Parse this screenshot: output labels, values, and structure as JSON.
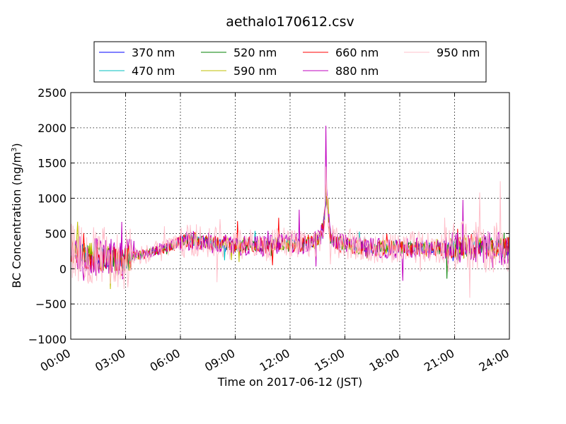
{
  "chart_data": {
    "type": "line",
    "title": "aethalo170612.csv",
    "xlabel": "Time on 2017-06-12 (JST)",
    "ylabel_main": "BC Concentration (ng/m",
    "ylabel_sup": "3",
    "ylabel_close": ")",
    "xlim": [
      0,
      24
    ],
    "ylim": [
      -1000,
      2500
    ],
    "x_unit": "hours",
    "yticks": [
      -1000,
      -500,
      0,
      500,
      1000,
      1500,
      2000,
      2500
    ],
    "ytick_labels": [
      "−1000",
      "−500",
      "0",
      "500",
      "1000",
      "1500",
      "2000",
      "2500"
    ],
    "xticks": [
      0,
      3,
      6,
      9,
      12,
      15,
      18,
      21,
      24
    ],
    "xtick_labels": [
      "00:00",
      "03:00",
      "06:00",
      "09:00",
      "12:00",
      "15:00",
      "18:00",
      "21:00",
      "24:00"
    ],
    "grid": true,
    "legend_position": "top",
    "anchors": {
      "x": [
        0,
        0.5,
        1,
        1.5,
        2,
        2.4,
        2.8,
        3.2,
        3.6,
        4,
        4.5,
        5,
        5.5,
        6,
        6.5,
        7,
        7.5,
        8,
        8.5,
        9,
        9.5,
        10,
        10.5,
        11,
        11.5,
        12,
        12.5,
        13,
        13.2,
        13.6,
        13.8,
        14,
        14.2,
        14.5,
        15,
        15.5,
        16,
        16.5,
        17,
        17.5,
        18,
        18.5,
        19,
        19.5,
        20,
        20.5,
        21,
        21.5,
        22,
        22.5,
        23,
        23.5,
        24
      ],
      "y": [
        280,
        250,
        180,
        150,
        160,
        130,
        120,
        150,
        190,
        210,
        250,
        280,
        320,
        400,
        410,
        400,
        380,
        360,
        350,
        330,
        340,
        330,
        320,
        340,
        350,
        360,
        350,
        370,
        360,
        420,
        560,
        1000,
        420,
        360,
        350,
        320,
        300,
        290,
        300,
        300,
        290,
        300,
        300,
        290,
        280,
        290,
        300,
        310,
        320,
        320,
        300,
        290,
        290
      ]
    },
    "series": [
      {
        "name": "370 nm",
        "color": "#0000ff",
        "noise": 70,
        "peak": 900,
        "seed": 11
      },
      {
        "name": "470 nm",
        "color": "#00bfbf",
        "noise": 80,
        "peak": 1000,
        "seed": 23
      },
      {
        "name": "520 nm",
        "color": "#008000",
        "noise": 90,
        "peak": 1150,
        "seed": 37
      },
      {
        "name": "590 nm",
        "color": "#bfbf00",
        "noise": 105,
        "peak": 1250,
        "seed": 41
      },
      {
        "name": "660 nm",
        "color": "#ff0000",
        "noise": 120,
        "peak": 1450,
        "seed": 53
      },
      {
        "name": "880 nm",
        "color": "#bf00bf",
        "noise": 150,
        "peak": 2030,
        "seed": 67
      },
      {
        "name": "950 nm",
        "color": "#ffc0cb",
        "noise": 230,
        "peak": 1450,
        "seed": 79
      }
    ]
  }
}
